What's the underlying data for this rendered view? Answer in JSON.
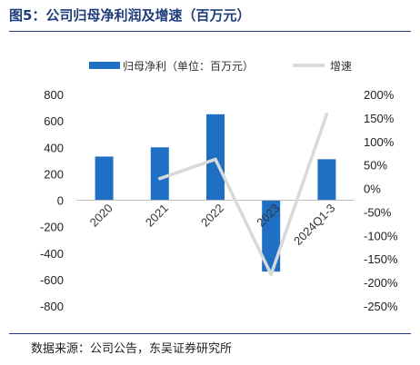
{
  "figure": {
    "title": "图5：公司归母净利润及增速（百万元）",
    "source": "数据来源：公司公告，东吴证券研究所"
  },
  "chart_data": {
    "type": "bar",
    "categories": [
      "2020",
      "2021",
      "2022",
      "2023",
      "2024Q1-3"
    ],
    "series": [
      {
        "name": "归母净利（单位：百万元）",
        "type": "bar",
        "axis": "left",
        "values": [
          330,
          400,
          650,
          -540,
          310
        ],
        "color": "#1f6fc5"
      },
      {
        "name": "增速",
        "type": "line",
        "axis": "right",
        "values": [
          null,
          21,
          62,
          -183,
          158
        ],
        "unit": "%",
        "color": "#d9d9d9"
      }
    ],
    "y_left": {
      "ticks": [
        800,
        600,
        400,
        200,
        0,
        -200,
        -400,
        -600,
        -800
      ],
      "ylim": [
        -800,
        800
      ]
    },
    "y_right": {
      "ticks": [
        "200%",
        "150%",
        "100%",
        "50%",
        "0%",
        "-50%",
        "-100%",
        "-150%",
        "-200%",
        "-250%"
      ],
      "ylim": [
        -250,
        200
      ]
    },
    "legend_position": "top",
    "grid": false
  }
}
